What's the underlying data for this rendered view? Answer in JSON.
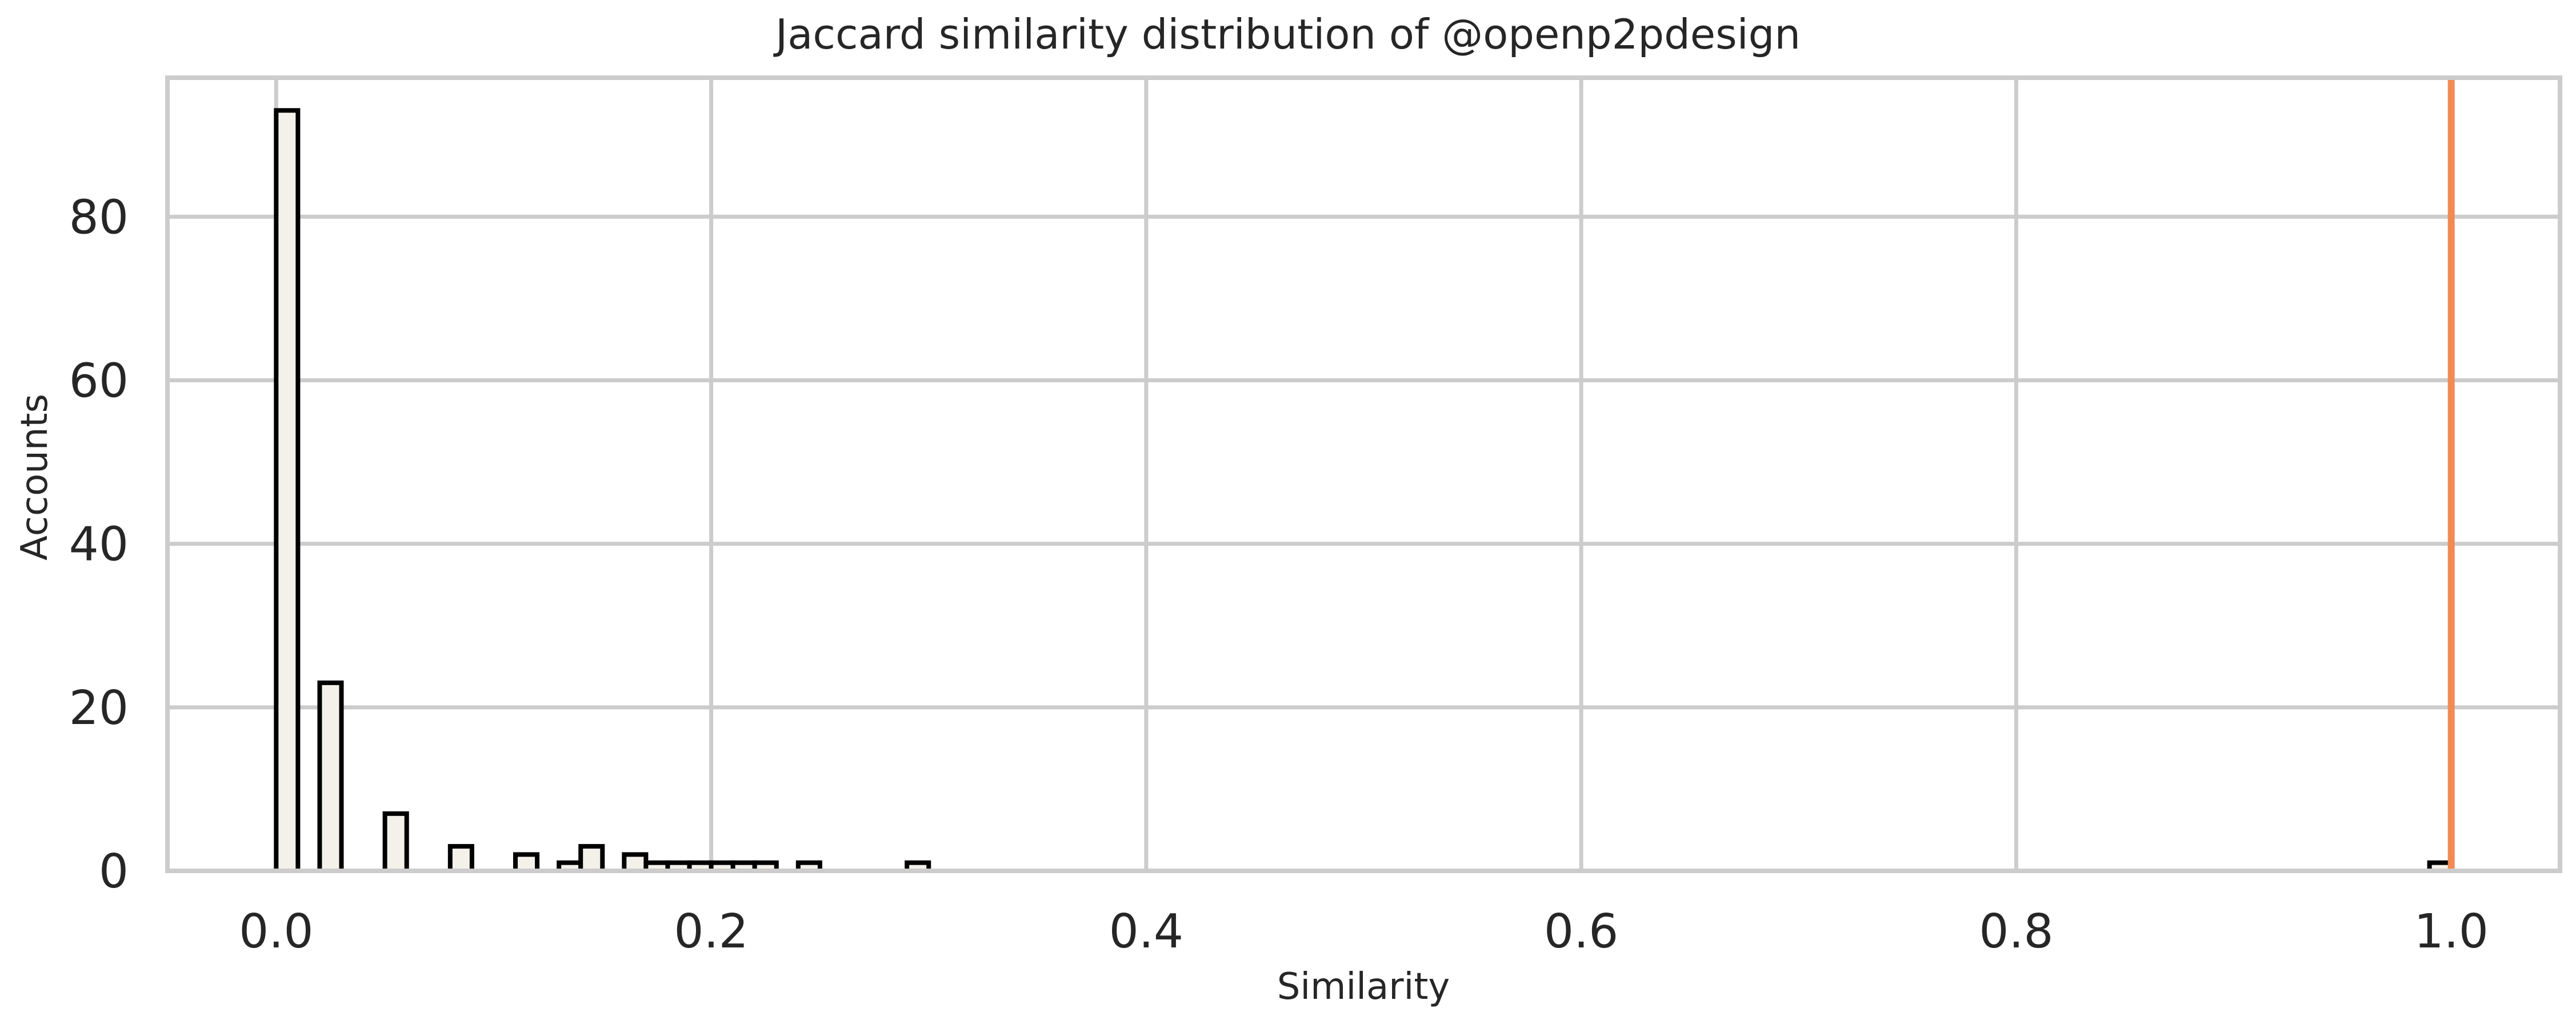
{
  "chart_data": {
    "type": "histogram",
    "title": "Jaccard similarity distribution of @openp2pdesign",
    "xlabel": "Similarity",
    "ylabel": "Accounts",
    "xlim": [
      -0.05,
      1.05
    ],
    "ylim": [
      0,
      97
    ],
    "xticks": [
      0.0,
      0.2,
      0.4,
      0.6,
      0.8,
      1.0
    ],
    "xtick_labels": [
      "0.0",
      "0.2",
      "0.4",
      "0.6",
      "0.8",
      "1.0"
    ],
    "yticks": [
      0,
      20,
      40,
      60,
      80
    ],
    "ytick_labels": [
      "0",
      "20",
      "40",
      "60",
      "80"
    ],
    "grid": true,
    "bin_width": 0.01,
    "bins": [
      {
        "start": 0.0,
        "count": 93
      },
      {
        "start": 0.02,
        "count": 23
      },
      {
        "start": 0.05,
        "count": 7
      },
      {
        "start": 0.08,
        "count": 3
      },
      {
        "start": 0.11,
        "count": 2
      },
      {
        "start": 0.13,
        "count": 1
      },
      {
        "start": 0.14,
        "count": 3
      },
      {
        "start": 0.16,
        "count": 2
      },
      {
        "start": 0.17,
        "count": 1
      },
      {
        "start": 0.18,
        "count": 1
      },
      {
        "start": 0.19,
        "count": 1
      },
      {
        "start": 0.2,
        "count": 1
      },
      {
        "start": 0.21,
        "count": 1
      },
      {
        "start": 0.22,
        "count": 1
      },
      {
        "start": 0.24,
        "count": 1
      },
      {
        "start": 0.29,
        "count": 1
      },
      {
        "start": 0.99,
        "count": 1
      }
    ],
    "bar_fill": "#f4f1ea",
    "bar_edge": "#000000",
    "reference_line": {
      "x": 1.0,
      "color": "#f28a54"
    },
    "grid_color": "#cccccc",
    "spine_color": "#cccccc"
  }
}
